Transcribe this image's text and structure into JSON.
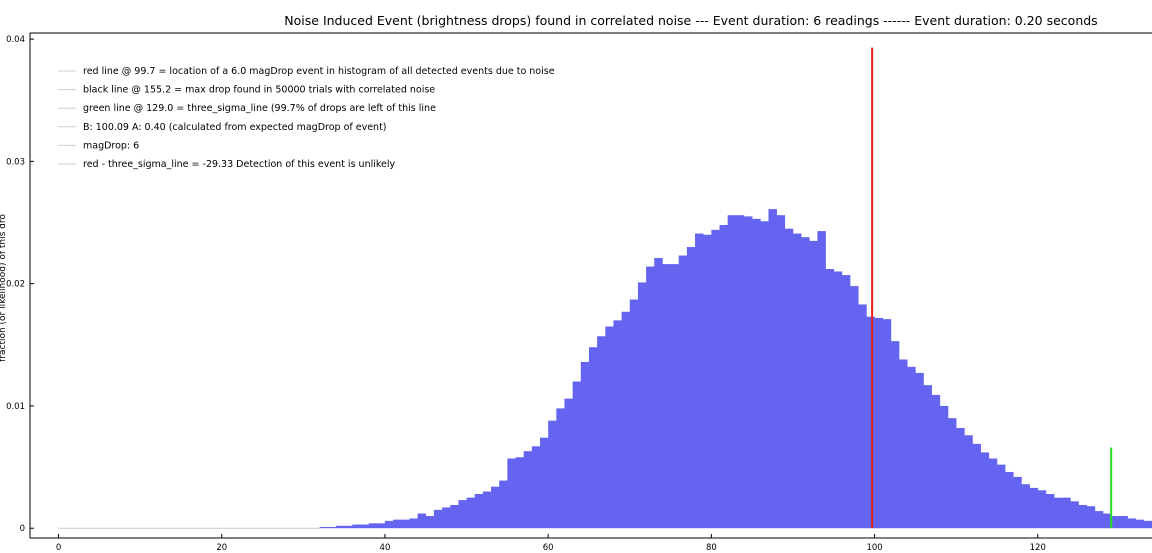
{
  "chart_data": {
    "type": "bar",
    "title": "Noise Induced Event (brightness drops) found in correlated noise --- Event duration: 6 readings ------ Event duration: 0.20 seconds",
    "xlabel": "",
    "ylabel": "fraction (or likelihood) of this dro",
    "xlim": [
      -3.5,
      134
    ],
    "ylim": [
      -0.0008,
      0.0405
    ],
    "x_ticks": [
      0,
      20,
      40,
      60,
      80,
      100,
      120
    ],
    "y_ticks": [
      0,
      0.01,
      0.02,
      0.03,
      0.04
    ],
    "y_tick_labels": [
      "0",
      "0.01",
      "0.02",
      "0.03",
      "0.04"
    ],
    "grid": false,
    "legend_position": "top-left",
    "legend": [
      "red line @ 99.7 = location of a 6.0 magDrop event in histogram of all detected events due to noise",
      "black line @ 155.2 = max drop found in 50000 trials with correlated noise",
      "green line @ 129.0 = three_sigma_line (99.7% of drops are left of this line",
      "B: 100.09 A: 0.40 (calculated from expected magDrop of event)",
      "magDrop: 6",
      "red - three_sigma_line = -29.33 Detection of this event is unlikely"
    ],
    "bar_color": "#6464f0",
    "bar_width": 1,
    "bar_x_start": 32,
    "bar_values": [
      0.0001,
      0.0001,
      0.0002,
      0.0002,
      0.0003,
      0.0003,
      0.0004,
      0.0004,
      0.0006,
      0.0007,
      0.0007,
      0.0008,
      0.0012,
      0.001,
      0.0015,
      0.0017,
      0.0019,
      0.0023,
      0.0025,
      0.0028,
      0.003,
      0.0034,
      0.0039,
      0.0057,
      0.0058,
      0.0063,
      0.0067,
      0.0074,
      0.0088,
      0.0098,
      0.0106,
      0.012,
      0.0136,
      0.0148,
      0.0157,
      0.0165,
      0.017,
      0.0177,
      0.0187,
      0.0201,
      0.0214,
      0.0221,
      0.0216,
      0.0216,
      0.0223,
      0.023,
      0.0241,
      0.024,
      0.0244,
      0.0248,
      0.0256,
      0.0256,
      0.0255,
      0.0253,
      0.0251,
      0.0261,
      0.0256,
      0.0245,
      0.0241,
      0.0238,
      0.0235,
      0.0243,
      0.0212,
      0.021,
      0.0207,
      0.0198,
      0.0183,
      0.0173,
      0.0172,
      0.0171,
      0.0153,
      0.0138,
      0.0132,
      0.0127,
      0.0117,
      0.0109,
      0.01,
      0.009,
      0.0082,
      0.0076,
      0.0069,
      0.0062,
      0.0057,
      0.0052,
      0.0046,
      0.0042,
      0.0036,
      0.0033,
      0.0031,
      0.0028,
      0.0025,
      0.0025,
      0.0022,
      0.0019,
      0.0018,
      0.0014,
      0.0012,
      0.001,
      0.001,
      0.0008,
      0.0007,
      0.0006,
      0.0005
    ],
    "baseline": {
      "x": [
        0,
        32
      ],
      "y": 0,
      "color": "#c8c8c8"
    },
    "vlines": [
      {
        "x": 99.7,
        "y_top": 0.0393,
        "color": "#e02020"
      },
      {
        "x": 129.0,
        "y_top": 0.0066,
        "color": "#22e022"
      }
    ]
  }
}
